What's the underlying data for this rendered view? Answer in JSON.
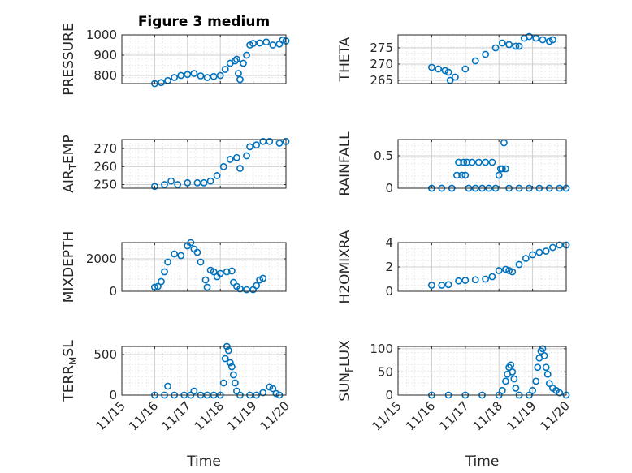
{
  "chart_data": [
    {
      "type": "scatter",
      "title": "Figure 3 medium",
      "ylabel": "PRESSURE",
      "ylim": [
        760,
        1000
      ],
      "yticks": [
        "800",
        "900",
        "1000"
      ],
      "series": [
        {
          "values": [
            [
              16.0,
              760
            ],
            [
              16.2,
              765
            ],
            [
              16.4,
              775
            ],
            [
              16.6,
              790
            ],
            [
              16.8,
              800
            ],
            [
              17.0,
              805
            ],
            [
              17.2,
              810
            ],
            [
              17.4,
              798
            ],
            [
              17.6,
              790
            ],
            [
              17.8,
              795
            ],
            [
              18.0,
              800
            ],
            [
              18.15,
              830
            ],
            [
              18.3,
              860
            ],
            [
              18.45,
              872
            ],
            [
              18.5,
              880
            ],
            [
              18.55,
              810
            ],
            [
              18.6,
              780
            ],
            [
              18.7,
              860
            ],
            [
              18.8,
              900
            ],
            [
              18.9,
              950
            ],
            [
              19.0,
              958
            ],
            [
              19.2,
              960
            ],
            [
              19.4,
              965
            ],
            [
              19.6,
              950
            ],
            [
              19.8,
              955
            ],
            [
              19.9,
              975
            ],
            [
              20.0,
              970
            ]
          ]
        }
      ]
    },
    {
      "type": "scatter",
      "ylabel": "THETA",
      "ylim": [
        264,
        279
      ],
      "yticks": [
        "265",
        "270",
        "275"
      ],
      "series": [
        {
          "values": [
            [
              16.0,
              269
            ],
            [
              16.2,
              268.5
            ],
            [
              16.4,
              268
            ],
            [
              16.5,
              267.5
            ],
            [
              16.55,
              265
            ],
            [
              16.7,
              266
            ],
            [
              17.0,
              268.5
            ],
            [
              17.3,
              271
            ],
            [
              17.6,
              273
            ],
            [
              17.9,
              275
            ],
            [
              18.1,
              276.5
            ],
            [
              18.3,
              276
            ],
            [
              18.5,
              275.5
            ],
            [
              18.6,
              275.5
            ],
            [
              18.75,
              278
            ],
            [
              18.9,
              278.5
            ],
            [
              19.1,
              278
            ],
            [
              19.3,
              277.5
            ],
            [
              19.5,
              277
            ],
            [
              19.6,
              277.5
            ]
          ]
        }
      ]
    },
    {
      "type": "scatter",
      "ylabel": "AIR_TEMP",
      "ylim": [
        248,
        275
      ],
      "yticks": [
        "250",
        "260",
        "270"
      ],
      "series": [
        {
          "values": [
            [
              16.0,
              249
            ],
            [
              16.3,
              250
            ],
            [
              16.5,
              252
            ],
            [
              16.7,
              250
            ],
            [
              17.0,
              251
            ],
            [
              17.3,
              251
            ],
            [
              17.5,
              251
            ],
            [
              17.7,
              252
            ],
            [
              17.9,
              255
            ],
            [
              18.1,
              260
            ],
            [
              18.3,
              264
            ],
            [
              18.5,
              265
            ],
            [
              18.6,
              259
            ],
            [
              18.8,
              266
            ],
            [
              18.9,
              271
            ],
            [
              19.1,
              272
            ],
            [
              19.3,
              274
            ],
            [
              19.5,
              274
            ],
            [
              19.8,
              273
            ],
            [
              20.0,
              274
            ]
          ]
        }
      ]
    },
    {
      "type": "scatter",
      "ylabel": "RAINFALL",
      "ylim": [
        0,
        0.75
      ],
      "yticks": [
        "0",
        "0.5"
      ],
      "series": [
        {
          "values": [
            [
              16.0,
              0
            ],
            [
              16.3,
              0
            ],
            [
              16.6,
              0
            ],
            [
              16.75,
              0.2
            ],
            [
              16.8,
              0.4
            ],
            [
              16.9,
              0.2
            ],
            [
              16.95,
              0.4
            ],
            [
              17.0,
              0.2
            ],
            [
              17.05,
              0.4
            ],
            [
              17.1,
              0
            ],
            [
              17.2,
              0.4
            ],
            [
              17.3,
              0
            ],
            [
              17.4,
              0.4
            ],
            [
              17.5,
              0
            ],
            [
              17.6,
              0.4
            ],
            [
              17.7,
              0
            ],
            [
              17.8,
              0.4
            ],
            [
              17.9,
              0
            ],
            [
              18.0,
              0.2
            ],
            [
              18.05,
              0.3
            ],
            [
              18.1,
              0.3
            ],
            [
              18.15,
              0.7
            ],
            [
              18.2,
              0.3
            ],
            [
              18.3,
              0
            ],
            [
              18.6,
              0
            ],
            [
              18.9,
              0
            ],
            [
              19.2,
              0
            ],
            [
              19.5,
              0
            ],
            [
              19.8,
              0
            ],
            [
              20.0,
              0
            ]
          ]
        }
      ]
    },
    {
      "type": "scatter",
      "ylabel": "MIXDEPTH",
      "ylim": [
        0,
        3000
      ],
      "yticks": [
        "0",
        "2000"
      ],
      "series": [
        {
          "values": [
            [
              16.0,
              250
            ],
            [
              16.1,
              300
            ],
            [
              16.2,
              600
            ],
            [
              16.3,
              1200
            ],
            [
              16.4,
              1800
            ],
            [
              16.6,
              2300
            ],
            [
              16.8,
              2200
            ],
            [
              17.0,
              2800
            ],
            [
              17.1,
              3000
            ],
            [
              17.2,
              2600
            ],
            [
              17.3,
              2400
            ],
            [
              17.4,
              1800
            ],
            [
              17.55,
              700
            ],
            [
              17.6,
              250
            ],
            [
              17.7,
              1300
            ],
            [
              17.8,
              1200
            ],
            [
              17.9,
              900
            ],
            [
              18.0,
              1100
            ],
            [
              18.2,
              1200
            ],
            [
              18.35,
              1250
            ],
            [
              18.4,
              550
            ],
            [
              18.5,
              300
            ],
            [
              18.6,
              150
            ],
            [
              18.8,
              100
            ],
            [
              19.0,
              100
            ],
            [
              19.1,
              350
            ],
            [
              19.2,
              700
            ],
            [
              19.3,
              800
            ]
          ]
        }
      ]
    },
    {
      "type": "scatter",
      "ylabel": "H2OMIXRA",
      "ylim": [
        0,
        4
      ],
      "yticks": [
        "0",
        "2",
        "4"
      ],
      "series": [
        {
          "values": [
            [
              16.0,
              0.5
            ],
            [
              16.3,
              0.5
            ],
            [
              16.5,
              0.55
            ],
            [
              16.8,
              0.85
            ],
            [
              17.0,
              0.9
            ],
            [
              17.3,
              0.95
            ],
            [
              17.6,
              1.0
            ],
            [
              17.8,
              1.2
            ],
            [
              18.0,
              1.7
            ],
            [
              18.2,
              1.8
            ],
            [
              18.3,
              1.7
            ],
            [
              18.4,
              1.6
            ],
            [
              18.6,
              2.2
            ],
            [
              18.8,
              2.7
            ],
            [
              19.0,
              3.0
            ],
            [
              19.2,
              3.2
            ],
            [
              19.4,
              3.3
            ],
            [
              19.6,
              3.6
            ],
            [
              19.8,
              3.8
            ],
            [
              20.0,
              3.8
            ]
          ]
        }
      ]
    },
    {
      "type": "scatter",
      "ylabel": "TERR_MSL",
      "xlabel": "Time",
      "ylim": [
        0,
        600
      ],
      "yticks": [
        "0",
        "500"
      ],
      "xticks": [
        "11/15",
        "11/16",
        "11/17",
        "11/18",
        "11/19",
        "11/20"
      ],
      "series": [
        {
          "values": [
            [
              16.0,
              0
            ],
            [
              16.3,
              0
            ],
            [
              16.4,
              110
            ],
            [
              16.6,
              0
            ],
            [
              16.9,
              0
            ],
            [
              17.1,
              0
            ],
            [
              17.2,
              50
            ],
            [
              17.4,
              0
            ],
            [
              17.6,
              0
            ],
            [
              17.8,
              0
            ],
            [
              18.0,
              0
            ],
            [
              18.1,
              150
            ],
            [
              18.15,
              450
            ],
            [
              18.2,
              600
            ],
            [
              18.25,
              550
            ],
            [
              18.3,
              400
            ],
            [
              18.35,
              350
            ],
            [
              18.4,
              250
            ],
            [
              18.45,
              150
            ],
            [
              18.5,
              50
            ],
            [
              18.6,
              0
            ],
            [
              18.9,
              0
            ],
            [
              19.1,
              0
            ],
            [
              19.3,
              30
            ],
            [
              19.5,
              100
            ],
            [
              19.6,
              80
            ],
            [
              19.7,
              20
            ],
            [
              19.8,
              0
            ]
          ]
        }
      ]
    },
    {
      "type": "scatter",
      "ylabel": "SUN_FLUX",
      "xlabel": "Time",
      "ylim": [
        0,
        105
      ],
      "yticks": [
        "0",
        "50",
        "100"
      ],
      "xticks": [
        "11/15",
        "11/16",
        "11/17",
        "11/18",
        "11/19",
        "11/20"
      ],
      "series": [
        {
          "values": [
            [
              16.0,
              0
            ],
            [
              16.5,
              0
            ],
            [
              17.0,
              0
            ],
            [
              17.5,
              0
            ],
            [
              18.0,
              0
            ],
            [
              18.1,
              10
            ],
            [
              18.2,
              30
            ],
            [
              18.25,
              45
            ],
            [
              18.3,
              60
            ],
            [
              18.35,
              65
            ],
            [
              18.4,
              50
            ],
            [
              18.45,
              35
            ],
            [
              18.5,
              15
            ],
            [
              18.6,
              0
            ],
            [
              18.9,
              0
            ],
            [
              19.0,
              10
            ],
            [
              19.1,
              30
            ],
            [
              19.15,
              60
            ],
            [
              19.2,
              80
            ],
            [
              19.25,
              95
            ],
            [
              19.3,
              100
            ],
            [
              19.35,
              85
            ],
            [
              19.4,
              60
            ],
            [
              19.45,
              45
            ],
            [
              19.5,
              25
            ],
            [
              19.6,
              15
            ],
            [
              19.7,
              10
            ],
            [
              19.8,
              5
            ],
            [
              20.0,
              0
            ]
          ]
        }
      ]
    }
  ],
  "colors": {
    "marker": "#0072bd",
    "axes": "#262626"
  }
}
